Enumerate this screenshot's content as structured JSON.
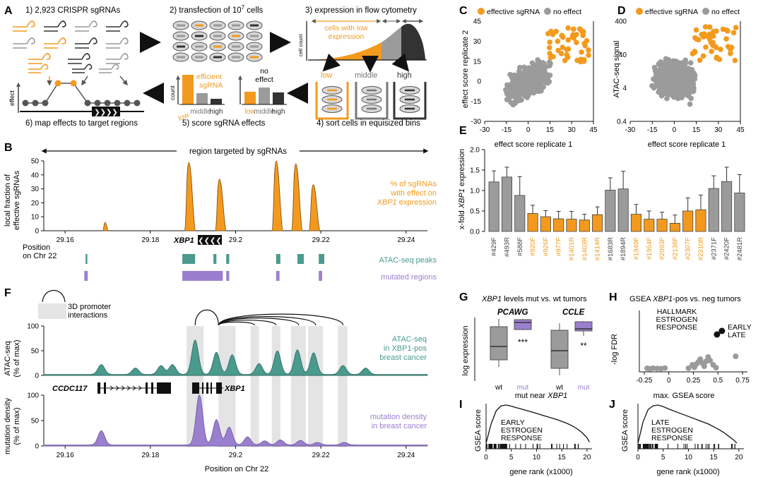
{
  "colors": {
    "orange": "#f39a1e",
    "grey": "#9b9b9b",
    "darkgrey": "#3a3a3a",
    "teal": "#4a9a8e",
    "purple": "#9b7fcf",
    "shade": "#e4e4e4",
    "black": "#111111"
  },
  "panelA": {
    "letter": "A",
    "step1": "1) 2,923 CRISPR sgRNAs",
    "step2_pre": "2) transfection of 10",
    "step2_sup": "7",
    "step2_post": " cells",
    "step3": "3) expression in flow cytometry",
    "step4": "4) sort cells in equisized bins",
    "step5": "5) score sgRNA effects",
    "step6": "6) map effects to target regions",
    "cells_low_l1": "cells with low",
    "cells_low_l2": "expression",
    "cell_count": "cell count",
    "bin_low": "low",
    "bin_middle": "middle",
    "bin_high": "high",
    "efficient_l1": "efficient",
    "efficient_l2": "sgRNA",
    "noeffect_l1": "no",
    "noeffect_l2": "effect",
    "count": "count",
    "effect": "effect",
    "arrow_glyph": "❯❯❯❯"
  },
  "panelB": {
    "letter": "B",
    "region_label": "region targeted by sgRNAs",
    "ylabel_l1": "local fraction of",
    "ylabel_l2": "effective sgRNAs",
    "yticks": [
      "0",
      "10",
      "20",
      "30",
      "40",
      "50"
    ],
    "xticks": [
      "29.16",
      "29.18",
      "29.2",
      "29.22",
      "29.24"
    ],
    "legend_l1": "% of sgRNAs",
    "legend_l2": "with effect on",
    "legend_l3_gene": "XBP1",
    "legend_l3_rest": " expression",
    "gene_label": "XBP1",
    "gene_arrow": "❮❮❮❮",
    "position_l1": "Position",
    "position_l2": "on Chr 22",
    "atac_label": "ATAC-seq peaks",
    "mut_label": "mutated regions"
  },
  "panelC": {
    "letter": "C",
    "legend_eff": "effective sgRNA",
    "legend_no": "no effect",
    "xlabel": "effect score replicate 1",
    "ylabel": "effect score replicate 2",
    "xticks": [
      "-30",
      "-15",
      "0",
      "15",
      "30",
      "45"
    ],
    "yticks": [
      "-30",
      "-15",
      "0",
      "15",
      "30",
      "45"
    ]
  },
  "panelD": {
    "letter": "D",
    "legend_eff": "effective sgRNA",
    "legend_no": "no effect",
    "xlabel": "effect score replicate 1",
    "ylabel": "ATAC-seq signal",
    "xticks": [
      "-30",
      "-15",
      "0",
      "15",
      "30",
      "45"
    ],
    "yticks": [
      "0.4",
      "4",
      "40",
      "400"
    ]
  },
  "panelE": {
    "letter": "E",
    "ylabel_pre": "x-fold ",
    "ylabel_gene": "XBP1",
    "ylabel_post": " expression",
    "yticks": [
      "0.0",
      "0.5",
      "1.0",
      "1.5",
      "2.0"
    ]
  },
  "panelF": {
    "letter": "F",
    "interactions_l1": "3D promoter",
    "interactions_l2": "interactions",
    "atac_ylabel_l1": "ATAC-seq",
    "atac_ylabel_l2": "(% of max)",
    "atac_legend_l1": "ATAC-seq",
    "atac_legend_l2": "in XBP1-pos",
    "atac_legend_l3": "breast cancer",
    "mut_ylabel_l1": "mutation density",
    "mut_ylabel_l2": "(% of max)",
    "mut_legend_l1": "mutation density",
    "mut_legend_l2": "in breast cancer",
    "gene1": "CCDC117",
    "gene2": "XBP1",
    "yticks": [
      "0",
      "50",
      "100"
    ],
    "xticks": [
      "29.16",
      "29.18",
      "29.2",
      "29.22",
      "29.24"
    ],
    "xlabel": "Position on Chr 22"
  },
  "panelG": {
    "letter": "G",
    "title_gene": "XBP1",
    "title_rest": " levels mut vs. wt tumors",
    "group1": "PCAWG",
    "group2": "CCLE",
    "ylabel": "log expression",
    "xlabel_pre": "mut near ",
    "xlabel_gene": "XBP1",
    "cat_wt": "wt",
    "cat_mut": "mut",
    "sig1": "***",
    "sig2": "**"
  },
  "panelH": {
    "letter": "H",
    "title_pre": "GSEA ",
    "title_gene": "XBP1",
    "title_post": "-pos vs. neg tumors",
    "ann_l1": "HALLMARK",
    "ann_l2": "ESTROGEN",
    "ann_l3": "RESPONSE",
    "early": "EARLY",
    "late": "LATE",
    "ylabel": "-log FDR",
    "xlabel": "max. GSEA score",
    "xticks": [
      "-0.25",
      "0",
      "0.25",
      "0.5",
      "0.75"
    ]
  },
  "panelI": {
    "letter": "I",
    "ylabel": "GSEA score",
    "xlabel": "gene rank (x1000)",
    "xticks": [
      "0",
      "5",
      "10",
      "15",
      "20"
    ],
    "ann_l1": "EARLY",
    "ann_l2": "ESTROGEN",
    "ann_l3": "RESPONSE"
  },
  "panelJ": {
    "letter": "J",
    "ylabel": "GSEA score",
    "xlabel": "gene rank (x1000)",
    "xticks": [
      "0",
      "5",
      "10",
      "15",
      "20"
    ],
    "ann_l1": "LATE",
    "ann_l2": "ESTROGEN",
    "ann_l3": "RESPONSE"
  },
  "chart_data": [
    {
      "type": "bar",
      "panel": "E",
      "categories": [
        "#429F",
        "#493R",
        "#588F",
        "#920F",
        "#926F",
        "#977F",
        "#1401R",
        "#1403R",
        "#1414R",
        "#1683R",
        "#1894R",
        "#1949F",
        "#1954F",
        "#2093F",
        "#2138F",
        "#2307F",
        "#2310R",
        "#2371F",
        "#2420F",
        "#2481R"
      ],
      "values": [
        1.21,
        1.33,
        0.88,
        0.44,
        0.36,
        0.31,
        0.3,
        0.28,
        0.41,
        1.01,
        1.04,
        0.42,
        0.3,
        0.3,
        0.2,
        0.5,
        0.53,
        1.05,
        1.22,
        0.94
      ],
      "errors": [
        0.27,
        0.24,
        0.46,
        0.2,
        0.15,
        0.18,
        0.19,
        0.14,
        0.19,
        0.3,
        0.43,
        0.24,
        0.2,
        0.17,
        0.2,
        0.32,
        0.36,
        0.31,
        0.35,
        0.45
      ],
      "effective": [
        false,
        false,
        false,
        true,
        true,
        true,
        true,
        true,
        true,
        false,
        false,
        true,
        true,
        true,
        true,
        true,
        true,
        false,
        false,
        false
      ],
      "ylabel": "x-fold XBP1 expression",
      "ylim": [
        0,
        2
      ]
    },
    {
      "type": "area",
      "panel": "B",
      "ylabel": "local fraction of effective sgRNAs",
      "xlim": [
        29.155,
        29.245
      ],
      "ylim": [
        0,
        50
      ],
      "peaks": [
        {
          "center": 29.1695,
          "height": 6
        },
        {
          "center": 29.1893,
          "height": 49
        },
        {
          "center": 29.1965,
          "height": 37
        },
        {
          "center": 29.2098,
          "height": 50
        },
        {
          "center": 29.2144,
          "height": 48
        },
        {
          "center": 29.2185,
          "height": 33
        }
      ]
    },
    {
      "type": "area",
      "panel": "F-atac",
      "xlim": [
        29.155,
        29.245
      ],
      "ylim": [
        0,
        100
      ],
      "peaks": [
        {
          "center": 29.1685,
          "height": 20
        },
        {
          "center": 29.1765,
          "height": 13
        },
        {
          "center": 29.1825,
          "height": 18
        },
        {
          "center": 29.1852,
          "height": 20
        },
        {
          "center": 29.1905,
          "height": 70
        },
        {
          "center": 29.1955,
          "height": 45
        },
        {
          "center": 29.1992,
          "height": 40
        },
        {
          "center": 29.2055,
          "height": 22
        },
        {
          "center": 29.2098,
          "height": 48
        },
        {
          "center": 29.2145,
          "height": 50
        },
        {
          "center": 29.2183,
          "height": 44
        },
        {
          "center": 29.2252,
          "height": 18
        },
        {
          "center": 29.2305,
          "height": 13
        }
      ]
    },
    {
      "type": "area",
      "panel": "F-mutation",
      "xlim": [
        29.155,
        29.245
      ],
      "ylim": [
        0,
        100
      ],
      "peaks": [
        {
          "center": 29.1685,
          "height": 28
        },
        {
          "center": 29.1915,
          "height": 100
        },
        {
          "center": 29.1955,
          "height": 50
        },
        {
          "center": 29.1985,
          "height": 35
        },
        {
          "center": 29.2028,
          "height": 16
        },
        {
          "center": 29.2068,
          "height": 8
        },
        {
          "center": 29.2105,
          "height": 10
        },
        {
          "center": 29.2152,
          "height": 9
        },
        {
          "center": 29.2192,
          "height": 5
        },
        {
          "center": 29.2255,
          "height": 5
        }
      ]
    },
    {
      "type": "scatter",
      "panel": "H",
      "xlabel": "max. GSEA score",
      "ylabel": "-log FDR",
      "xlim": [
        -0.3,
        0.8
      ],
      "highlighted": [
        {
          "label": "EARLY",
          "x": 0.54,
          "y": 2.7
        },
        {
          "label": "LATE",
          "x": 0.49,
          "y": 2.45
        }
      ]
    },
    {
      "type": "line",
      "panel": "I",
      "xlabel": "gene rank (x1000)",
      "ylabel": "GSEA score",
      "xlim": [
        0,
        21
      ],
      "x": [
        0,
        1,
        2,
        3,
        4,
        5,
        6,
        8,
        10,
        12,
        14,
        16,
        17,
        18,
        19,
        20,
        20.5
      ],
      "y": [
        0,
        0.5,
        0.85,
        0.98,
        1.0,
        0.97,
        0.93,
        0.86,
        0.78,
        0.7,
        0.62,
        0.52,
        0.46,
        0.38,
        0.28,
        0.14,
        0.03
      ]
    },
    {
      "type": "line",
      "panel": "J",
      "xlabel": "gene rank (x1000)",
      "ylabel": "GSEA score",
      "xlim": [
        0,
        21
      ],
      "x": [
        0,
        1,
        2,
        3,
        4,
        5,
        6,
        8,
        10,
        12,
        14,
        16,
        17,
        18,
        19,
        19.6
      ],
      "y": [
        0,
        0.55,
        0.88,
        0.98,
        1.0,
        0.96,
        0.9,
        0.8,
        0.7,
        0.6,
        0.5,
        0.36,
        0.28,
        0.18,
        0.08,
        0.0
      ]
    }
  ]
}
